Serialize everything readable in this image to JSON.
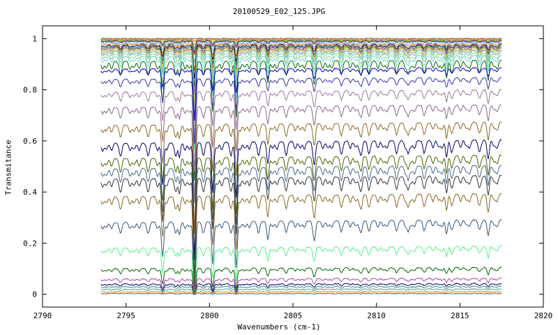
{
  "chart_data": {
    "type": "line",
    "title": "20100529_E02_125.JPG",
    "xlabel": "Wavenumbers (cm-1)",
    "ylabel": "Transmitance",
    "xlim": [
      2790,
      2820
    ],
    "ylim": [
      -0.05,
      1.05
    ],
    "x_ticks": [
      2790,
      2795,
      2800,
      2805,
      2810,
      2815,
      2820
    ],
    "x_tick_labels": [
      "2790",
      "2795",
      "2800",
      "2805",
      "2810",
      "2815",
      "2820"
    ],
    "y_ticks": [
      0,
      0.2,
      0.4,
      0.6,
      0.8,
      1
    ],
    "y_tick_labels": [
      "0",
      "0.2",
      "0.4",
      "0.6",
      "0.8",
      "1"
    ],
    "x_range_data": [
      2793.5,
      2817.5
    ],
    "absorption_lines": [
      {
        "x": 2797.2,
        "depth": 0.3
      },
      {
        "x": 2799.1,
        "depth": 0.9
      },
      {
        "x": 2800.2,
        "depth": 0.35
      },
      {
        "x": 2801.6,
        "depth": 0.45
      },
      {
        "x": 2798.2,
        "depth": 0.12
      },
      {
        "x": 2803.5,
        "depth": 0.12
      },
      {
        "x": 2806.3,
        "depth": 0.1
      },
      {
        "x": 2809.1,
        "depth": 0.1
      },
      {
        "x": 2811.9,
        "depth": 0.1
      },
      {
        "x": 2814.2,
        "depth": 0.14
      },
      {
        "x": 2816.7,
        "depth": 0.1
      }
    ],
    "series": [
      {
        "baseline": 1.0,
        "color": "#666666"
      },
      {
        "baseline": 0.998,
        "color": "#ff4444"
      },
      {
        "baseline": 0.996,
        "color": "#ffaa00"
      },
      {
        "baseline": 0.994,
        "color": "#44cc44"
      },
      {
        "baseline": 0.992,
        "color": "#aa44aa"
      },
      {
        "baseline": 0.99,
        "color": "#444444"
      },
      {
        "baseline": 0.985,
        "color": "#66bbff"
      },
      {
        "baseline": 0.98,
        "color": "#cc6600"
      },
      {
        "baseline": 0.975,
        "color": "#000066"
      },
      {
        "baseline": 0.97,
        "color": "#336600"
      },
      {
        "baseline": 0.965,
        "color": "#884488"
      },
      {
        "baseline": 0.96,
        "color": "#cccc00"
      },
      {
        "baseline": 0.955,
        "color": "#aaaaee"
      },
      {
        "baseline": 0.95,
        "color": "#66cc99"
      },
      {
        "baseline": 0.94,
        "color": "#99cc99"
      },
      {
        "baseline": 0.93,
        "color": "#66ddcc"
      },
      {
        "baseline": 0.91,
        "color": "#006600"
      },
      {
        "baseline": 0.88,
        "color": "#0000cc"
      },
      {
        "baseline": 0.84,
        "color": "#3333aa"
      },
      {
        "baseline": 0.79,
        "color": "#997799"
      },
      {
        "baseline": 0.73,
        "color": "#886688"
      },
      {
        "baseline": 0.66,
        "color": "#886622"
      },
      {
        "baseline": 0.59,
        "color": "#000066"
      },
      {
        "baseline": 0.53,
        "color": "#446600"
      },
      {
        "baseline": 0.49,
        "color": "#446688"
      },
      {
        "baseline": 0.45,
        "color": "#333333"
      },
      {
        "baseline": 0.38,
        "color": "#886622"
      },
      {
        "baseline": 0.28,
        "color": "#335577"
      },
      {
        "baseline": 0.18,
        "color": "#55ee88"
      },
      {
        "baseline": 0.1,
        "color": "#006600"
      },
      {
        "baseline": 0.06,
        "color": "#aa44aa"
      },
      {
        "baseline": 0.04,
        "color": "#000066"
      },
      {
        "baseline": 0.03,
        "color": "#448888"
      },
      {
        "baseline": 0.02,
        "color": "#44aaaa"
      },
      {
        "baseline": 0.01,
        "color": "#ff8800"
      },
      {
        "baseline": 0.003,
        "color": "#666666"
      }
    ]
  }
}
